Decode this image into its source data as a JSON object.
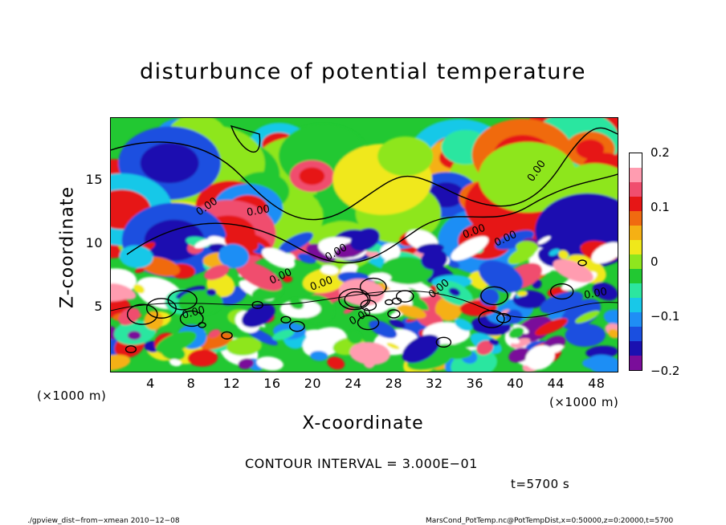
{
  "title": "disturbunce of potential temperature",
  "chart_data": {
    "type": "heatmap",
    "title": "disturbunce of potential temperature",
    "xlabel": "X-coordinate",
    "ylabel": "Z-coordinate",
    "x_unit_left": "(×1000 m)",
    "x_unit_right": "(×1000 m)",
    "xlim": [
      0,
      50
    ],
    "ylim": [
      0,
      20
    ],
    "x_ticks": [
      4,
      8,
      12,
      16,
      20,
      24,
      28,
      32,
      36,
      40,
      44,
      48
    ],
    "y_ticks": [
      5,
      10,
      15
    ],
    "colorbar": {
      "range": [
        -0.2,
        0.2
      ],
      "ticks": [
        "0.2",
        "0.1",
        "0",
        "−0.1",
        "−0.2"
      ],
      "colors": [
        "#7a0d9a",
        "#1a10b0",
        "#1a4fe0",
        "#1f8ef5",
        "#18c8e8",
        "#2ce6a0",
        "#22c832",
        "#8ee61e",
        "#f0e81a",
        "#f5b014",
        "#f06a10",
        "#e61616",
        "#f04e6e",
        "#ff9cb0",
        "#ffffff"
      ]
    },
    "contour_labels": [
      "0.00",
      "0.00",
      "0.00",
      "0.00",
      "0.00",
      "0.00",
      "0.00",
      "0.00",
      "0.00",
      "0.00",
      "0.00",
      "0.00"
    ],
    "grid": false,
    "legend": "colorbar-right"
  },
  "annotations": {
    "contour_interval": "CONTOUR INTERVAL = 3.000E−01",
    "time": "t=5700 s",
    "footer_left": "./gpview_dist−from−xmean  2010−12−08",
    "footer_right": "MarsCond_PotTemp.nc@PotTempDist,x=0:50000,z=0:20000,t=5700"
  }
}
